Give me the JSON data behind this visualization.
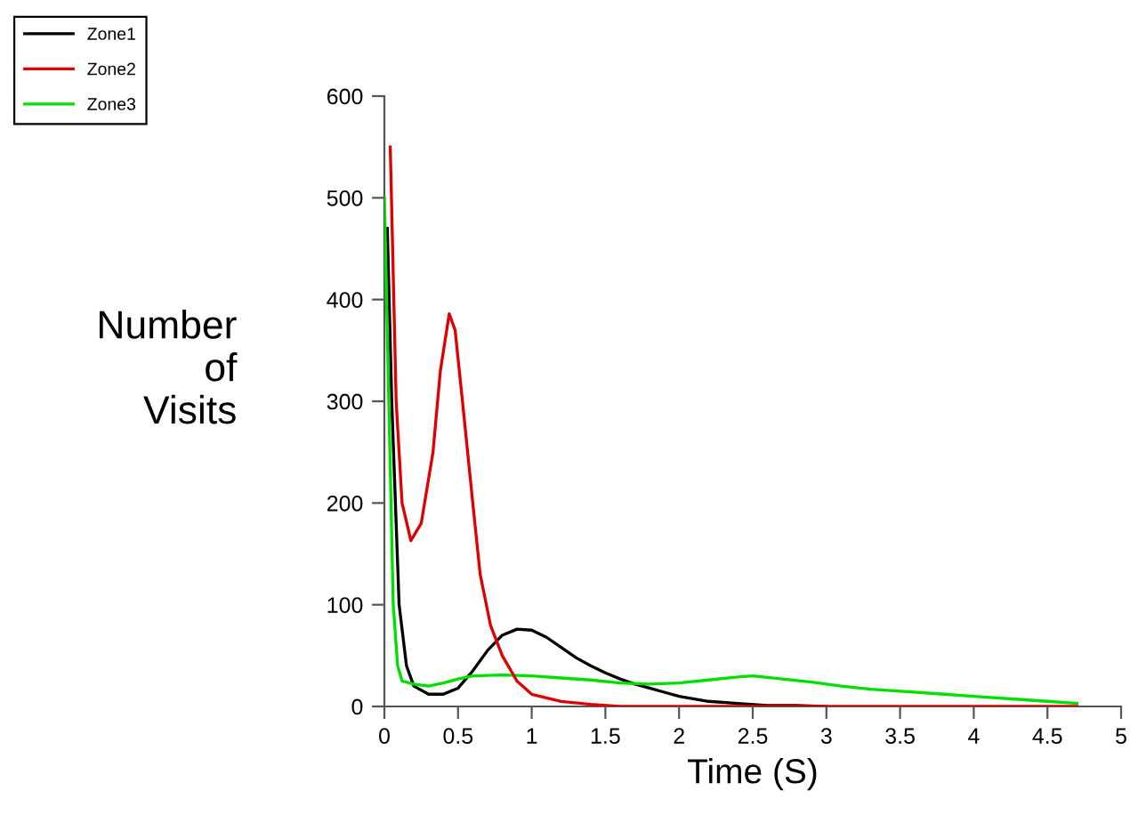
{
  "chart_data": {
    "type": "line",
    "xlabel": "Time (S)",
    "ylabel": "Number\nof\nVisits",
    "legend": "top left",
    "grid": false,
    "xlim": [
      0,
      5
    ],
    "ylim": [
      0,
      600
    ],
    "xticks": [
      0,
      0.5,
      1,
      1.5,
      2,
      2.5,
      3,
      3.5,
      4,
      4.5,
      5
    ],
    "yticks": [
      0,
      100,
      200,
      300,
      400,
      500,
      600
    ],
    "series": [
      {
        "name": "Zone1",
        "color": "#000000",
        "x": [
          0.02,
          0.05,
          0.1,
          0.15,
          0.2,
          0.3,
          0.4,
          0.5,
          0.6,
          0.7,
          0.8,
          0.9,
          1.0,
          1.1,
          1.2,
          1.3,
          1.4,
          1.5,
          1.6,
          1.7,
          1.8,
          1.9,
          2.0,
          2.2,
          2.4,
          2.6,
          2.8,
          3.0
        ],
        "values": [
          470,
          300,
          100,
          40,
          20,
          12,
          12,
          18,
          35,
          55,
          70,
          76,
          75,
          68,
          58,
          48,
          40,
          33,
          27,
          22,
          18,
          14,
          10,
          5,
          3,
          1,
          1,
          0
        ]
      },
      {
        "name": "Zone2",
        "color": "#e00000",
        "x": [
          0.04,
          0.08,
          0.12,
          0.18,
          0.25,
          0.33,
          0.38,
          0.44,
          0.48,
          0.53,
          0.6,
          0.65,
          0.72,
          0.8,
          0.9,
          1.0,
          1.2,
          1.4,
          1.6,
          2.0,
          3.5,
          4.0,
          4.7
        ],
        "values": [
          550,
          300,
          200,
          163,
          180,
          250,
          330,
          386,
          370,
          300,
          200,
          130,
          80,
          50,
          25,
          12,
          5,
          2,
          0,
          0,
          0,
          0,
          0
        ]
      },
      {
        "name": "Zone3",
        "color": "#00e000",
        "x": [
          0.0,
          0.03,
          0.06,
          0.09,
          0.12,
          0.2,
          0.3,
          0.4,
          0.5,
          0.6,
          0.8,
          1.0,
          1.2,
          1.4,
          1.6,
          1.8,
          2.0,
          2.2,
          2.4,
          2.5,
          2.7,
          2.9,
          3.1,
          3.3,
          3.5,
          3.8,
          4.0,
          4.3,
          4.5,
          4.7
        ],
        "values": [
          500,
          300,
          100,
          40,
          25,
          22,
          20,
          23,
          27,
          30,
          31,
          30,
          28,
          26,
          23,
          22,
          23,
          26,
          29,
          30,
          27,
          24,
          20,
          17,
          15,
          12,
          10,
          7,
          5,
          3
        ]
      }
    ]
  }
}
